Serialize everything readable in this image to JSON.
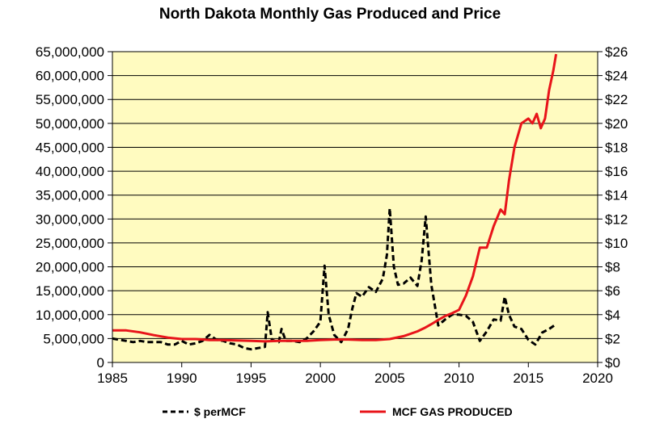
{
  "chart_data": {
    "type": "line",
    "title": "North Dakota Monthly Gas Produced and Price",
    "xlabel": "",
    "ylabel": "",
    "y2label": "",
    "xlim": [
      1985,
      2020
    ],
    "ylim": [
      0,
      65000000
    ],
    "y2lim": [
      0,
      26
    ],
    "x_ticks": [
      1985,
      1990,
      1995,
      2000,
      2005,
      2010,
      2015,
      2020
    ],
    "x_tick_labels": [
      "1985",
      "1990",
      "1995",
      "2000",
      "2005",
      "2010",
      "2015",
      "2020"
    ],
    "y_ticks": [
      0,
      5000000,
      10000000,
      15000000,
      20000000,
      25000000,
      30000000,
      35000000,
      40000000,
      45000000,
      50000000,
      55000000,
      60000000,
      65000000
    ],
    "y_tick_labels": [
      "0",
      "5,000,000",
      "10,000,000",
      "15,000,000",
      "20,000,000",
      "25,000,000",
      "30,000,000",
      "35,000,000",
      "40,000,000",
      "45,000,000",
      "50,000,000",
      "55,000,000",
      "60,000,000",
      "65,000,000"
    ],
    "y2_ticks": [
      0,
      2,
      4,
      6,
      8,
      10,
      12,
      14,
      16,
      18,
      20,
      22,
      24,
      26
    ],
    "y2_tick_labels": [
      "$0",
      "$2",
      "$4",
      "$6",
      "$8",
      "$10",
      "$12",
      "$14",
      "$16",
      "$18",
      "$20",
      "$22",
      "$24",
      "$26"
    ],
    "grid": "horizontal",
    "legend_position": "bottom",
    "plot_background": "#FFFBC0",
    "series": [
      {
        "name": "$ perMCF",
        "axis": "right",
        "color": "#000000",
        "style": "dashed",
        "x": [
          1985.0,
          1985.5,
          1986.0,
          1986.5,
          1987.0,
          1987.5,
          1988.0,
          1988.5,
          1989.0,
          1989.5,
          1990.0,
          1990.5,
          1991.0,
          1991.5,
          1992.0,
          1992.5,
          1993.0,
          1993.5,
          1994.0,
          1994.5,
          1995.0,
          1995.5,
          1996.0,
          1996.2,
          1996.5,
          1997.0,
          1997.2,
          1997.5,
          1998.0,
          1998.5,
          1999.0,
          1999.5,
          2000.0,
          2000.3,
          2000.6,
          2001.0,
          2001.5,
          2002.0,
          2002.3,
          2002.6,
          2003.0,
          2003.5,
          2004.0,
          2004.5,
          2004.8,
          2005.0,
          2005.3,
          2005.6,
          2006.0,
          2006.5,
          2007.0,
          2007.3,
          2007.6,
          2008.0,
          2008.5,
          2009.0,
          2009.5,
          2010.0,
          2010.5,
          2011.0,
          2011.5,
          2012.0,
          2012.5,
          2013.0,
          2013.3,
          2013.6,
          2014.0,
          2014.5,
          2015.0,
          2015.5,
          2016.0,
          2016.5,
          2017.0
        ],
        "y": [
          2.0,
          1.9,
          1.8,
          1.7,
          1.8,
          1.7,
          1.7,
          1.7,
          1.5,
          1.5,
          1.8,
          1.5,
          1.6,
          1.8,
          2.3,
          1.9,
          1.8,
          1.6,
          1.5,
          1.2,
          1.1,
          1.2,
          1.3,
          4.2,
          1.9,
          1.7,
          2.8,
          1.8,
          1.8,
          1.7,
          2.0,
          2.6,
          3.4,
          8.1,
          4.0,
          2.3,
          1.7,
          2.8,
          4.5,
          5.8,
          5.5,
          6.3,
          5.9,
          7.0,
          9.0,
          12.9,
          8.0,
          6.5,
          6.6,
          7.1,
          6.4,
          8.5,
          12.2,
          6.5,
          3.1,
          3.6,
          4.0,
          4.0,
          3.9,
          3.4,
          1.8,
          2.6,
          3.6,
          3.5,
          5.5,
          4.0,
          3.0,
          2.8,
          1.9,
          1.5,
          2.5,
          2.8,
          3.2
        ]
      },
      {
        "name": "MCF GAS PRODUCED",
        "axis": "left",
        "color": "#E8141A",
        "style": "solid",
        "x": [
          1985.0,
          1986.0,
          1987.0,
          1988.0,
          1989.0,
          1990.0,
          1991.0,
          1992.0,
          1993.0,
          1994.0,
          1995.0,
          1996.0,
          1997.0,
          1998.0,
          1999.0,
          2000.0,
          2001.0,
          2002.0,
          2003.0,
          2004.0,
          2005.0,
          2006.0,
          2006.5,
          2007.0,
          2007.5,
          2008.0,
          2008.5,
          2009.0,
          2009.5,
          2010.0,
          2010.5,
          2011.0,
          2011.5,
          2012.0,
          2012.5,
          2013.0,
          2013.3,
          2013.6,
          2014.0,
          2014.5,
          2015.0,
          2015.3,
          2015.6,
          2015.9,
          2016.2,
          2016.5,
          2016.8,
          2017.0
        ],
        "y": [
          6700000,
          6700000,
          6300000,
          5700000,
          5200000,
          4900000,
          4900000,
          4700000,
          4700000,
          4600000,
          4500000,
          4400000,
          4500000,
          4500000,
          4500000,
          4700000,
          4800000,
          4800000,
          4700000,
          4700000,
          4900000,
          5500000,
          6000000,
          6500000,
          7200000,
          8000000,
          8900000,
          9700000,
          10300000,
          11000000,
          14000000,
          18000000,
          24000000,
          24000000,
          28500000,
          32000000,
          31000000,
          38000000,
          45000000,
          50000000,
          51000000,
          50000000,
          52000000,
          49000000,
          51000000,
          57000000,
          61000000,
          64500000
        ]
      }
    ]
  }
}
